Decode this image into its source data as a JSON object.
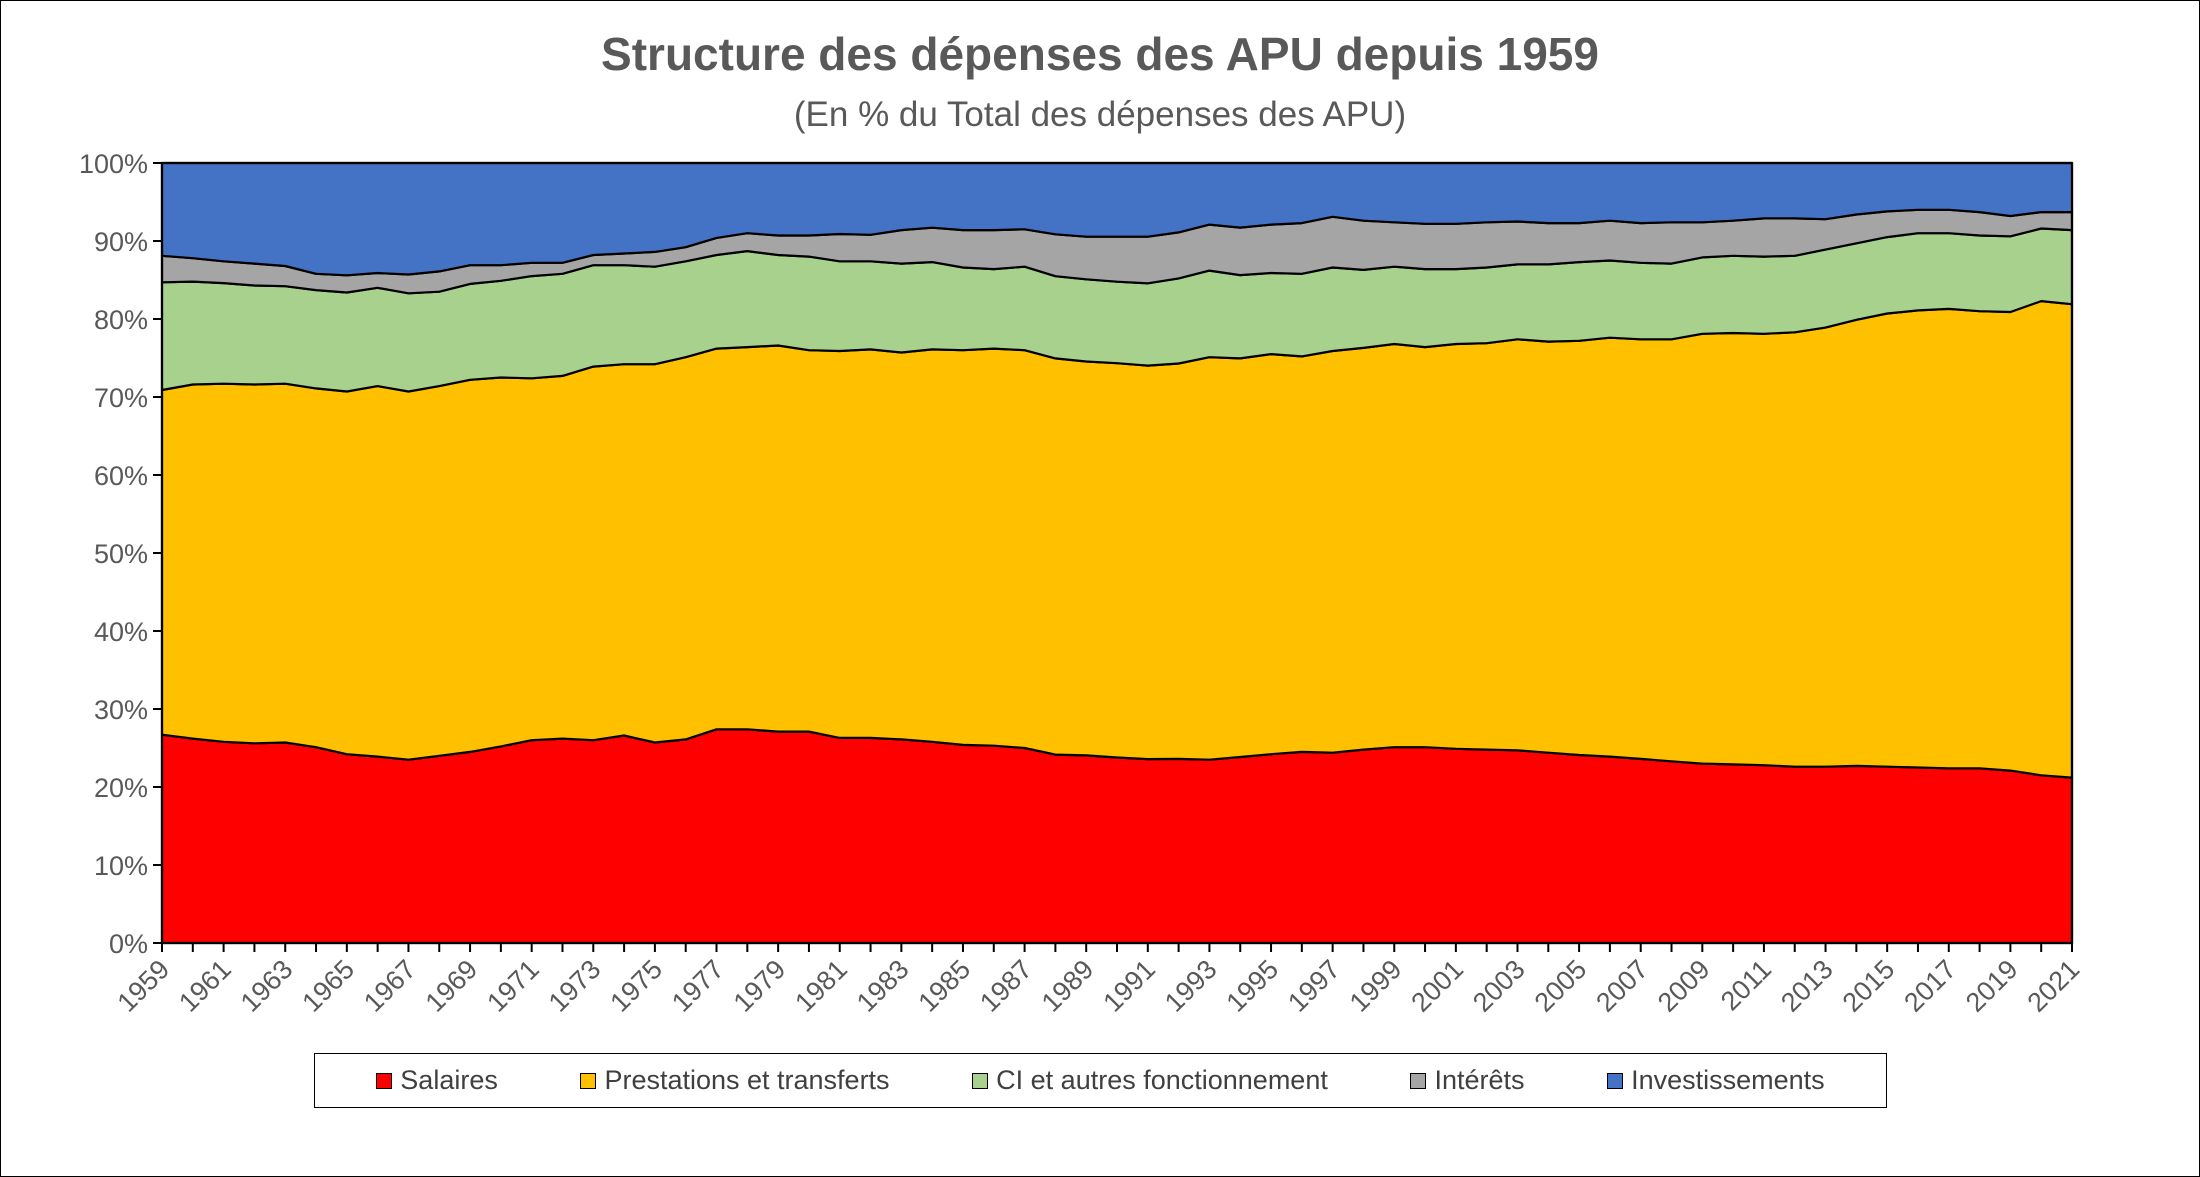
{
  "chart_data": {
    "type": "area",
    "stacked": true,
    "normalized": true,
    "title": "Structure des dépenses des APU depuis 1959",
    "subtitle": "(En % du Total des dépenses des APU)",
    "ylim": [
      0,
      100
    ],
    "y_tick_labels": [
      "0%",
      "10%",
      "20%",
      "30%",
      "40%",
      "50%",
      "60%",
      "70%",
      "80%",
      "90%",
      "100%"
    ],
    "x": [
      1959,
      1960,
      1961,
      1962,
      1963,
      1964,
      1965,
      1966,
      1967,
      1968,
      1969,
      1970,
      1971,
      1972,
      1973,
      1974,
      1975,
      1976,
      1977,
      1978,
      1979,
      1980,
      1981,
      1982,
      1983,
      1984,
      1985,
      1986,
      1987,
      1988,
      1989,
      1990,
      1991,
      1992,
      1993,
      1994,
      1995,
      1996,
      1997,
      1998,
      1999,
      2000,
      2001,
      2002,
      2003,
      2004,
      2005,
      2006,
      2007,
      2008,
      2009,
      2010,
      2011,
      2012,
      2013,
      2014,
      2015,
      2016,
      2017,
      2018,
      2019,
      2020,
      2021
    ],
    "x_tick_labels": [
      "1959",
      "1961",
      "1963",
      "1965",
      "1967",
      "1969",
      "1971",
      "1973",
      "1975",
      "1977",
      "1979",
      "1981",
      "1983",
      "1985",
      "1987",
      "1989",
      "1991",
      "1993",
      "1995",
      "1997",
      "1999",
      "2001",
      "2003",
      "2005",
      "2007",
      "2009",
      "2011",
      "2013",
      "2015",
      "2017",
      "2019",
      "2021"
    ],
    "grid": false,
    "legend_position": "bottom",
    "series": [
      {
        "name": "Salaires",
        "color": "#ff0000",
        "values": [
          26.7,
          26.2,
          25.8,
          25.6,
          25.7,
          25.1,
          24.2,
          23.9,
          23.5,
          24.0,
          24.5,
          25.2,
          26.0,
          26.2,
          26.0,
          26.6,
          25.7,
          26.1,
          27.4,
          27.4,
          27.1,
          27.1,
          26.3,
          26.3,
          26.1,
          25.8,
          25.4,
          25.3,
          25.0,
          24.3,
          24.2,
          23.9,
          23.7,
          23.6,
          23.5,
          23.9,
          24.2,
          24.5,
          24.4,
          24.8,
          25.1,
          25.1,
          24.9,
          24.8,
          24.7,
          24.4,
          24.1,
          23.9,
          23.6,
          23.3,
          23.0,
          22.9,
          22.8,
          22.6,
          22.6,
          22.7,
          22.6,
          22.5,
          22.4,
          22.4,
          22.1,
          21.5,
          21.2
        ]
      },
      {
        "name": "Prestations et transferts",
        "color": "#ffc000",
        "values": [
          44.2,
          45.4,
          45.9,
          46.0,
          46.0,
          46.0,
          46.5,
          47.5,
          47.2,
          47.4,
          47.7,
          47.3,
          46.4,
          46.5,
          47.9,
          47.6,
          48.5,
          49.0,
          48.8,
          49.0,
          49.5,
          48.9,
          49.6,
          49.8,
          49.6,
          50.3,
          50.6,
          50.9,
          51.0,
          51.1,
          50.8,
          50.8,
          50.7,
          50.7,
          51.6,
          51.2,
          51.3,
          50.7,
          51.5,
          51.5,
          51.7,
          51.3,
          51.9,
          52.1,
          52.7,
          52.7,
          53.1,
          53.7,
          53.8,
          54.1,
          55.1,
          55.3,
          55.3,
          55.7,
          56.3,
          57.2,
          58.1,
          58.6,
          58.9,
          58.6,
          58.8,
          60.8,
          60.7
        ]
      },
      {
        "name": "CI et autres fonctionnement",
        "color": "#a9d18e",
        "values": [
          13.8,
          13.2,
          12.9,
          12.7,
          12.5,
          12.6,
          12.7,
          12.6,
          12.6,
          12.1,
          12.3,
          12.4,
          13.1,
          13.1,
          13.0,
          12.7,
          12.5,
          12.3,
          12.0,
          12.3,
          11.6,
          12.0,
          11.5,
          11.3,
          11.4,
          11.2,
          10.6,
          10.2,
          10.7,
          10.6,
          10.6,
          10.5,
          10.6,
          10.9,
          11.1,
          10.7,
          10.4,
          10.6,
          10.7,
          10.0,
          9.9,
          10.0,
          9.6,
          9.7,
          9.6,
          9.9,
          10.1,
          9.9,
          9.8,
          9.7,
          9.8,
          9.9,
          9.9,
          9.8,
          10.0,
          9.8,
          9.8,
          9.9,
          9.7,
          9.7,
          9.7,
          9.3,
          9.5
        ]
      },
      {
        "name": "Intérêts",
        "color": "#a5a5a5",
        "values": [
          3.4,
          3.0,
          2.8,
          2.8,
          2.6,
          2.1,
          2.2,
          1.9,
          2.4,
          2.6,
          2.4,
          2.0,
          1.7,
          1.4,
          1.3,
          1.5,
          1.9,
          1.8,
          2.2,
          2.3,
          2.5,
          2.7,
          3.5,
          3.4,
          4.3,
          4.4,
          4.8,
          5.0,
          4.8,
          5.4,
          5.5,
          5.8,
          6.0,
          5.9,
          5.9,
          6.1,
          6.2,
          6.5,
          6.5,
          6.3,
          5.7,
          5.8,
          5.8,
          5.8,
          5.5,
          5.3,
          5.0,
          5.1,
          5.1,
          5.3,
          4.5,
          4.5,
          4.9,
          4.8,
          3.9,
          3.7,
          3.3,
          3.0,
          3.0,
          3.0,
          2.6,
          2.1,
          2.3
        ]
      },
      {
        "name": "Investissements",
        "color": "#4472c4",
        "values": [
          11.9,
          12.2,
          12.6,
          12.9,
          13.2,
          14.2,
          14.4,
          14.1,
          14.3,
          13.9,
          13.1,
          13.1,
          12.8,
          12.8,
          11.8,
          11.6,
          11.4,
          10.8,
          9.6,
          9.0,
          9.3,
          9.3,
          9.1,
          9.2,
          8.6,
          8.3,
          8.6,
          8.6,
          8.5,
          9.2,
          9.5,
          9.5,
          9.5,
          8.9,
          7.9,
          8.3,
          7.9,
          7.7,
          6.9,
          7.4,
          7.6,
          7.8,
          7.8,
          7.6,
          7.5,
          7.7,
          7.7,
          7.4,
          7.7,
          7.6,
          7.6,
          7.4,
          7.1,
          7.1,
          7.2,
          6.6,
          6.2,
          6.0,
          6.0,
          6.3,
          6.8,
          6.3,
          6.3
        ]
      }
    ]
  }
}
